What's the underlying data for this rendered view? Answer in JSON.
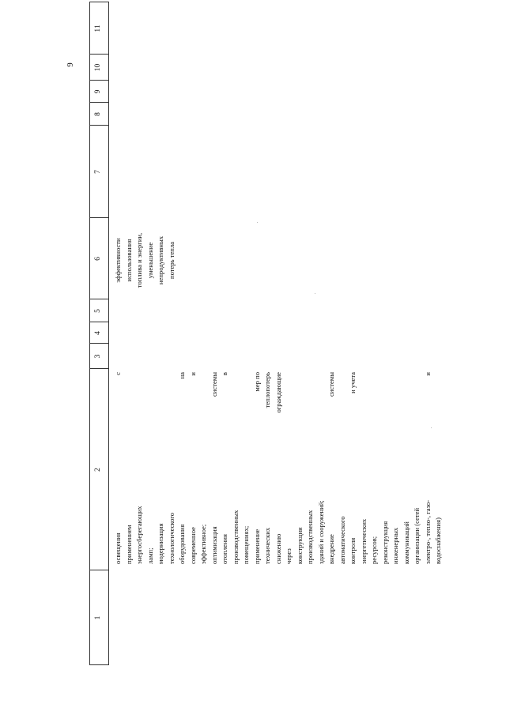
{
  "page": {
    "number": "9"
  },
  "table": {
    "headers": [
      "1",
      "2",
      "3",
      "4",
      "5",
      "6",
      "7",
      "8",
      "9",
      "10",
      "11"
    ],
    "col2_lines": [
      {
        "left": "освещения",
        "right": "с"
      },
      {
        "left": "применением"
      },
      {
        "left": "энергосберегающих"
      },
      {
        "left": "ламп;"
      },
      {
        "left": "модернизация"
      },
      {
        "left": "технологического"
      },
      {
        "left": "оборудования",
        "right": "на"
      },
      {
        "left": "современное",
        "right": "и"
      },
      {
        "left": "эффективное;"
      },
      {
        "left": "оптимизация",
        "right": "системы"
      },
      {
        "left": "отопления",
        "right": "в"
      },
      {
        "left": "производственных"
      },
      {
        "left": "помещениях;"
      },
      {
        "left": "применение",
        "right": "мер по"
      },
      {
        "left": "технических",
        "right": "теплопотерь"
      },
      {
        "left": "снижению",
        "right": "ограждающие"
      },
      {
        "left": "через",
        "right": ""
      },
      {
        "left": "конструкции"
      },
      {
        "left": "производственных"
      },
      {
        "left": "зданий и сооружений;"
      },
      {
        "left": "внедрение",
        "right": "системы"
      },
      {
        "left": "автоматического"
      },
      {
        "left": "контроля",
        "right": "и     учета"
      },
      {
        "left": "энергетических"
      },
      {
        "left": "ресурсов;"
      },
      {
        "left": "реконструкция"
      },
      {
        "left": "инженерных"
      },
      {
        "left": "коммуникаций"
      },
      {
        "left": "организации (сетей"
      },
      {
        "left": "электро-, тепло-, газо-",
        "right": "и"
      },
      {
        "left": "водоснабжения)"
      }
    ],
    "col6_lines": [
      "эффективности",
      "использования",
      "топлива и энергии,",
      "уменьшение",
      "непродуктивных",
      "потерь тепла"
    ]
  }
}
